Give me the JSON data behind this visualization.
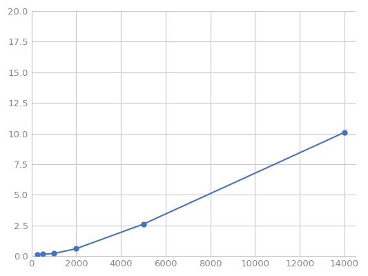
{
  "x": [
    250,
    500,
    1000,
    2000,
    5000,
    14000
  ],
  "y": [
    0.1,
    0.15,
    0.2,
    0.6,
    2.6,
    10.1
  ],
  "line_color": "#4472C4",
  "marker_color": "#4472C4",
  "marker_size": 5,
  "xlim": [
    0,
    14500
  ],
  "ylim": [
    0.0,
    20.0
  ],
  "xticks": [
    0,
    2000,
    4000,
    6000,
    8000,
    10000,
    12000,
    14000
  ],
  "yticks": [
    0.0,
    2.5,
    5.0,
    7.5,
    10.0,
    12.5,
    15.0,
    17.5,
    20.0
  ],
  "grid_color": "#C8C8C8",
  "background_color": "#FFFFFF",
  "figure_bg": "#FFFFFF",
  "tick_color": "#888888",
  "tick_fontsize": 9.5
}
